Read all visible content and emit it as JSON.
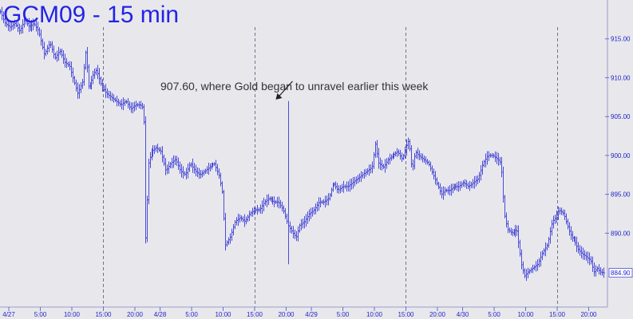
{
  "chart_data": {
    "type": "bar",
    "subtype": "ohlc-bars",
    "title": "GCM09 - 15 min",
    "colors": {
      "bars": "#4b4bd8",
      "text": "#2323c8",
      "title": "#2323e6",
      "background": "#e8e8ec",
      "annotation": "#333333"
    },
    "y_axis": {
      "position": "right",
      "range": [
        880.5,
        920.0
      ],
      "ticks": [
        "915.00",
        "910.00",
        "905.00",
        "900.00",
        "895.00",
        "890.00"
      ],
      "tick_values": [
        915,
        910,
        905,
        900,
        895,
        890
      ]
    },
    "x_axis": {
      "tick_labels": [
        "4/27",
        "5:00",
        "10:00",
        "15:00",
        "20:00",
        "4/28",
        "5:00",
        "10:00",
        "15:00",
        "20:00",
        "4/29",
        "5:00",
        "10:00",
        "15:00",
        "20:00",
        "4/30",
        "5:00",
        "10:00",
        "15:00",
        "20:00"
      ],
      "session_breaks": [
        "15:00 4/27",
        "15:00 4/28",
        "15:00 4/29",
        "15:00 4/30"
      ]
    },
    "last_price": "884.90",
    "annotation": {
      "text": "907.60, where Gold began to unravel earlier this week",
      "target_price": 907.6
    },
    "price_path": [
      [
        0,
        918.5
      ],
      [
        6,
        917.0
      ],
      [
        12,
        916.5
      ],
      [
        18,
        917.0
      ],
      [
        24,
        916.0
      ],
      [
        30,
        917.5
      ],
      [
        36,
        916.5
      ],
      [
        42,
        917.0
      ],
      [
        48,
        916.0
      ],
      [
        55,
        913.0
      ],
      [
        62,
        914.5
      ],
      [
        68,
        912.5
      ],
      [
        74,
        913.5
      ],
      [
        80,
        912.0
      ],
      [
        86,
        911.5
      ],
      [
        90,
        910.0
      ],
      [
        96,
        908.0
      ],
      [
        102,
        909.5
      ],
      [
        106,
        913.5
      ],
      [
        110,
        908.5
      ],
      [
        116,
        910.5
      ],
      [
        120,
        911.0
      ],
      [
        126,
        909.0
      ],
      [
        132,
        908.0
      ],
      [
        138,
        907.5
      ],
      [
        144,
        907.0
      ],
      [
        150,
        906.5
      ],
      [
        156,
        907.0
      ],
      [
        162,
        906.0
      ],
      [
        168,
        906.5
      ],
      [
        174,
        906.5
      ],
      [
        178,
        906.0
      ],
      [
        180,
        889.0
      ],
      [
        184,
        899.0
      ],
      [
        188,
        900.5
      ],
      [
        194,
        901.0
      ],
      [
        200,
        900.5
      ],
      [
        206,
        898.0
      ],
      [
        212,
        899.0
      ],
      [
        218,
        899.5
      ],
      [
        224,
        898.0
      ],
      [
        230,
        897.5
      ],
      [
        236,
        899.0
      ],
      [
        242,
        898.0
      ],
      [
        248,
        897.5
      ],
      [
        254,
        898.0
      ],
      [
        260,
        898.5
      ],
      [
        266,
        899.0
      ],
      [
        272,
        897.5
      ],
      [
        276,
        895.5
      ],
      [
        280,
        888.5
      ],
      [
        286,
        889.5
      ],
      [
        292,
        891.5
      ],
      [
        298,
        892.0
      ],
      [
        304,
        891.5
      ],
      [
        310,
        892.5
      ],
      [
        316,
        893.0
      ],
      [
        322,
        893.0
      ],
      [
        328,
        894.0
      ],
      [
        334,
        894.5
      ],
      [
        340,
        894.0
      ],
      [
        346,
        894.0
      ],
      [
        352,
        893.0
      ],
      [
        358,
        891.0
      ],
      [
        364,
        890.0
      ],
      [
        368,
        889.5
      ],
      [
        372,
        891.0
      ],
      [
        378,
        891.5
      ],
      [
        384,
        892.5
      ],
      [
        390,
        893.0
      ],
      [
        396,
        894.0
      ],
      [
        402,
        894.0
      ],
      [
        408,
        894.5
      ],
      [
        414,
        896.5
      ],
      [
        420,
        895.5
      ],
      [
        426,
        896.0
      ],
      [
        432,
        896.0
      ],
      [
        438,
        896.5
      ],
      [
        444,
        897.0
      ],
      [
        450,
        897.5
      ],
      [
        456,
        898.0
      ],
      [
        462,
        898.5
      ],
      [
        466,
        901.5
      ],
      [
        470,
        899.0
      ],
      [
        476,
        898.5
      ],
      [
        482,
        899.5
      ],
      [
        488,
        900.0
      ],
      [
        494,
        900.5
      ],
      [
        500,
        899.5
      ],
      [
        504,
        901.0
      ],
      [
        508,
        902.0
      ],
      [
        512,
        898.0
      ],
      [
        516,
        900.5
      ],
      [
        520,
        900.0
      ],
      [
        526,
        899.5
      ],
      [
        532,
        899.0
      ],
      [
        538,
        897.5
      ],
      [
        544,
        896.0
      ],
      [
        548,
        895.0
      ],
      [
        552,
        895.5
      ],
      [
        558,
        895.5
      ],
      [
        564,
        896.0
      ],
      [
        570,
        896.0
      ],
      [
        576,
        896.5
      ],
      [
        582,
        896.0
      ],
      [
        588,
        896.5
      ],
      [
        594,
        897.0
      ],
      [
        600,
        899.0
      ],
      [
        606,
        900.0
      ],
      [
        612,
        900.0
      ],
      [
        618,
        899.5
      ],
      [
        622,
        899.0
      ],
      [
        626,
        892.5
      ],
      [
        630,
        890.5
      ],
      [
        636,
        890.0
      ],
      [
        642,
        890.5
      ],
      [
        648,
        886.0
      ],
      [
        652,
        884.5
      ],
      [
        656,
        885.0
      ],
      [
        662,
        885.5
      ],
      [
        668,
        886.0
      ],
      [
        674,
        887.5
      ],
      [
        680,
        888.5
      ],
      [
        686,
        891.5
      ],
      [
        690,
        892.0
      ],
      [
        694,
        893.0
      ],
      [
        700,
        892.5
      ],
      [
        706,
        890.5
      ],
      [
        710,
        889.5
      ],
      [
        714,
        889.0
      ],
      [
        718,
        888.0
      ],
      [
        722,
        887.5
      ],
      [
        728,
        887.0
      ],
      [
        734,
        886.5
      ],
      [
        738,
        885.0
      ],
      [
        742,
        885.5
      ],
      [
        746,
        885.0
      ],
      [
        750,
        884.9
      ]
    ]
  }
}
